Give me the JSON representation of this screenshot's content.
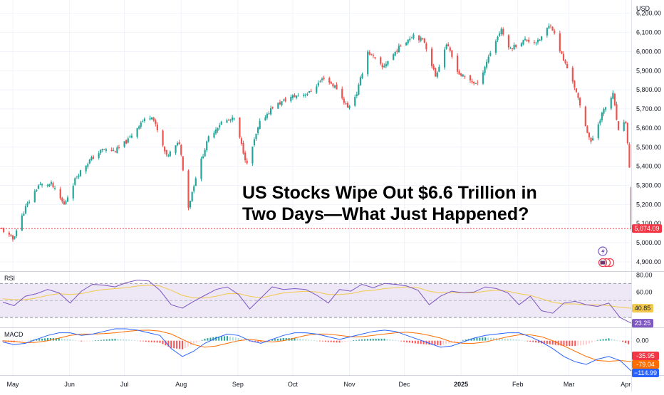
{
  "headline": {
    "line1": "US Stocks Wipe Out $6.6 Trillion in",
    "line2": "Two Days—What Just Happened?"
  },
  "price_axis": {
    "currency": "USD",
    "ticks": [
      "6,200.00",
      "6,100.00",
      "6,000.00",
      "5,900.00",
      "5,800.00",
      "5,700.00",
      "5,600.00",
      "5,500.00",
      "5,400.00",
      "5,300.00",
      "5,200.00",
      "5,100.00",
      "5,000.00",
      "4,900.00"
    ],
    "last_price_label": "5,074.09"
  },
  "time_axis": {
    "labels": [
      "May",
      "Jun",
      "Jul",
      "Aug",
      "Sep",
      "Oct",
      "Nov",
      "Dec",
      "2025",
      "Feb",
      "Mar",
      "Apr"
    ]
  },
  "rsi_panel": {
    "title": "RSI",
    "ticks": [
      "80.00",
      "60.00",
      "40.00"
    ],
    "value_labels": [
      "40.85",
      "23.25"
    ]
  },
  "macd_panel": {
    "title": "MACD",
    "ticks": [
      "0.00"
    ],
    "value_labels": [
      "-35.95",
      "-79.04",
      "−114.99"
    ]
  },
  "colors": {
    "up": "#26a69a",
    "down": "#ef5350",
    "rsi_line": "#7e57c2",
    "rsi_ma": "#f2c94c",
    "rsi_band": "#ede7f6",
    "macd_line": "#2962ff",
    "signal_line": "#ff6d00",
    "last_price": "#f23645",
    "grid": "#f0f3fa",
    "axis_text": "#131722"
  },
  "chart_data": [
    {
      "type": "candlestick",
      "title": "US Stocks Wipe Out $6.6 Trillion in Two Days—What Just Happened?",
      "y_unit": "USD",
      "ylim": [
        4870,
        6240
      ],
      "x_range": [
        "2024-04-24",
        "2025-04-04"
      ],
      "x_labels": [
        "May",
        "Jun",
        "Jul",
        "Aug",
        "Sep",
        "Oct",
        "Nov",
        "Dec",
        "2025",
        "Feb",
        "Mar",
        "Apr"
      ],
      "close_series": {
        "dates": [
          "2024-04-25",
          "2024-05-01",
          "2024-05-08",
          "2024-05-15",
          "2024-05-22",
          "2024-05-29",
          "2024-06-05",
          "2024-06-12",
          "2024-06-19",
          "2024-06-26",
          "2024-07-03",
          "2024-07-10",
          "2024-07-16",
          "2024-07-24",
          "2024-07-31",
          "2024-08-05",
          "2024-08-09",
          "2024-08-16",
          "2024-08-23",
          "2024-08-30",
          "2024-09-06",
          "2024-09-13",
          "2024-09-20",
          "2024-09-30",
          "2024-10-10",
          "2024-10-18",
          "2024-10-25",
          "2024-10-31",
          "2024-11-05",
          "2024-11-11",
          "2024-11-19",
          "2024-11-29",
          "2024-12-06",
          "2024-12-12",
          "2024-12-18",
          "2024-12-24",
          "2024-12-31",
          "2025-01-10",
          "2025-01-17",
          "2025-01-23",
          "2025-01-27",
          "2025-02-05",
          "2025-02-12",
          "2025-02-19",
          "2025-02-26",
          "2025-03-03",
          "2025-03-10",
          "2025-03-13",
          "2025-03-19",
          "2025-03-25",
          "2025-03-28",
          "2025-04-01",
          "2025-04-03",
          "2025-04-04"
        ],
        "values": [
          5070,
          5018,
          5185,
          5300,
          5307,
          5198,
          5352,
          5430,
          5487,
          5480,
          5537,
          5630,
          5667,
          5450,
          5525,
          5186,
          5344,
          5550,
          5630,
          5648,
          5408,
          5627,
          5710,
          5762,
          5785,
          5864,
          5808,
          5705,
          5782,
          6001,
          5916,
          6032,
          6090,
          6051,
          5872,
          6040,
          5882,
          5827,
          5997,
          6119,
          6012,
          6061,
          6051,
          6144,
          5955,
          5849,
          5614,
          5521,
          5675,
          5776,
          5580,
          5633,
          5397,
          5074
        ]
      },
      "last_price": 5074.09
    },
    {
      "type": "line",
      "title": "RSI",
      "ylim": [
        20,
        82
      ],
      "band": [
        30,
        70
      ],
      "series": [
        {
          "values": [
            48,
            44,
            55,
            58,
            63,
            59,
            47,
            61,
            69,
            68,
            66,
            71,
            74,
            73,
            62,
            45,
            41,
            49,
            56,
            63,
            66,
            57,
            40,
            53,
            66,
            63,
            64,
            63,
            56,
            47,
            63,
            61,
            69,
            65,
            70,
            69,
            67,
            62,
            45,
            55,
            61,
            59,
            60,
            66,
            64,
            59,
            45,
            55,
            38,
            35,
            47,
            49,
            45,
            43,
            47,
            30,
            23.25
          ]
        },
        {
          "values": [
            52,
            51,
            51,
            53,
            56,
            58,
            57,
            58,
            61,
            63,
            64,
            65,
            67,
            68,
            67,
            62,
            56,
            53,
            53,
            55,
            58,
            58,
            55,
            53,
            56,
            59,
            60,
            61,
            60,
            57,
            57,
            58,
            61,
            62,
            64,
            65,
            66,
            65,
            61,
            59,
            59,
            59,
            59,
            61,
            62,
            61,
            58,
            56,
            52,
            48,
            46,
            46,
            45,
            45,
            44,
            42,
            40.85
          ]
        }
      ]
    },
    {
      "type": "line",
      "title": "MACD",
      "ylim": [
        -125,
        45
      ],
      "series": [
        {
          "values": [
            -5,
            -15,
            -10,
            5,
            20,
            30,
            30,
            20,
            25,
            35,
            45,
            45,
            40,
            30,
            20,
            -30,
            -60,
            -40,
            -10,
            10,
            25,
            20,
            0,
            -10,
            5,
            20,
            30,
            30,
            25,
            15,
            5,
            15,
            25,
            35,
            40,
            35,
            20,
            5,
            -10,
            -25,
            -20,
            -5,
            10,
            20,
            25,
            30,
            30,
            15,
            -5,
            -30,
            -60,
            -80,
            -90,
            -70,
            -60,
            -75,
            -114.99
          ]
        },
        {
          "values": [
            0,
            -3,
            -8,
            -6,
            0,
            10,
            20,
            25,
            25,
            27,
            30,
            35,
            39,
            40,
            36,
            25,
            5,
            -15,
            -25,
            -20,
            -10,
            0,
            5,
            0,
            -5,
            0,
            10,
            20,
            25,
            25,
            20,
            15,
            15,
            20,
            25,
            30,
            32,
            28,
            20,
            10,
            -5,
            -10,
            -10,
            -5,
            5,
            15,
            22,
            22,
            15,
            0,
            -20,
            -40,
            -60,
            -75,
            -78,
            -75,
            -79.04
          ]
        }
      ],
      "histogram_last": -35.95
    }
  ]
}
